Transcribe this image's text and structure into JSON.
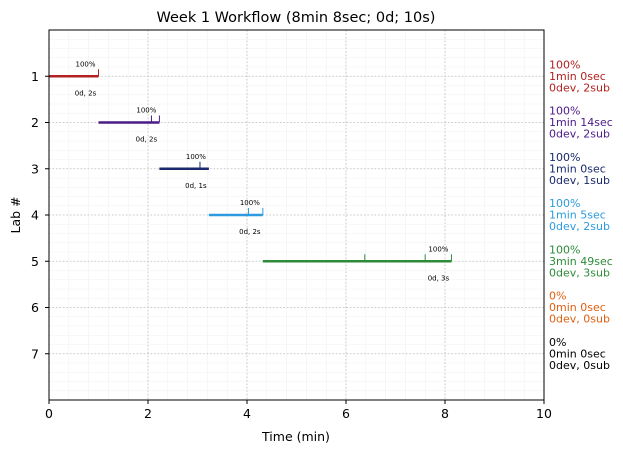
{
  "chart_data": {
    "type": "gantt",
    "title": "Week 1 Workflow (8min 8sec; 0d; 10s)",
    "xlabel": "Time (min)",
    "ylabel": "Lab #",
    "xlim": [
      0,
      10
    ],
    "ylim": [
      0,
      8
    ],
    "x_ticks": [
      "0",
      "2",
      "4",
      "6",
      "8",
      "10"
    ],
    "y_ticks": [
      "1",
      "2",
      "3",
      "4",
      "5",
      "6",
      "7"
    ],
    "grid": true,
    "labs": [
      {
        "lab": 1,
        "start": 0.0,
        "end": 1.0,
        "marks": [
          1.0
        ],
        "color": "#b22222",
        "pct_label": "100%",
        "sub_label": "0d, 2s",
        "side": [
          "100%",
          "1min 0sec",
          "0dev, 2sub"
        ]
      },
      {
        "lab": 2,
        "start": 1.0,
        "end": 2.23,
        "marks": [
          2.07,
          2.23
        ],
        "color": "#4b1b87",
        "pct_label": "100%",
        "sub_label": "0d, 2s",
        "side": [
          "100%",
          "1min 14sec",
          "0dev, 2sub"
        ]
      },
      {
        "lab": 3,
        "start": 2.23,
        "end": 3.23,
        "marks": [
          3.05
        ],
        "color": "#1a2a6c",
        "pct_label": "100%",
        "sub_label": "0d, 1s",
        "side": [
          "100%",
          "1min 0sec",
          "0dev, 1sub"
        ]
      },
      {
        "lab": 4,
        "start": 3.23,
        "end": 4.32,
        "marks": [
          4.03,
          4.32
        ],
        "color": "#2e9ae0",
        "pct_label": "100%",
        "sub_label": "0d, 2s",
        "side": [
          "100%",
          "1min 5sec",
          "0dev, 2sub"
        ]
      },
      {
        "lab": 5,
        "start": 4.32,
        "end": 8.13,
        "marks": [
          6.38,
          7.6,
          8.13
        ],
        "color": "#2e8b3a",
        "pct_label": "100%",
        "sub_label": "0d, 3s",
        "side": [
          "100%",
          "3min 49sec",
          "0dev, 3sub"
        ]
      },
      {
        "lab": 6,
        "start": null,
        "end": null,
        "marks": [],
        "color": "#e06010",
        "pct_label": "",
        "sub_label": "",
        "side": [
          "0%",
          "0min 0sec",
          "0dev, 0sub"
        ]
      },
      {
        "lab": 7,
        "start": null,
        "end": null,
        "marks": [],
        "color": "#000000",
        "pct_label": "",
        "sub_label": "",
        "side": [
          "0%",
          "0min 0sec",
          "0dev, 0sub"
        ]
      }
    ]
  }
}
